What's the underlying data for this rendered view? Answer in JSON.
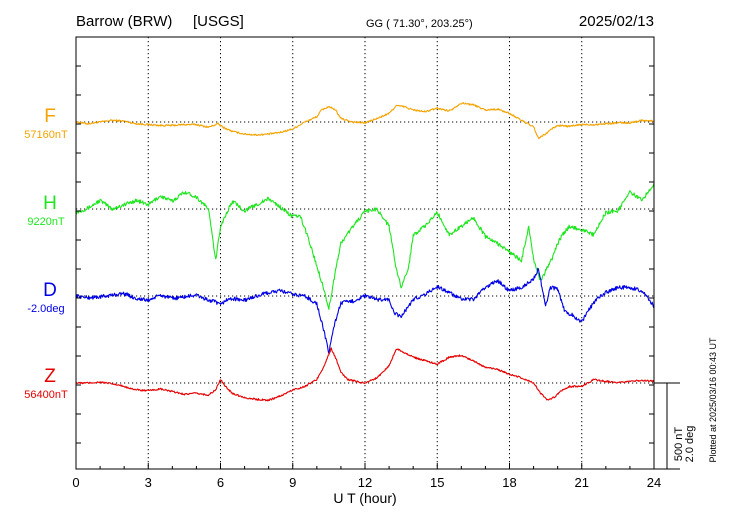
{
  "header": {
    "station": "Barrow (BRW)",
    "source": "[USGS]",
    "coords": "GG ( 71.30°, 203.25°)",
    "date": "2025/02/13"
  },
  "scale_bar": {
    "nt_label": "500 nT",
    "deg_label": "2.0 deg"
  },
  "footer_note": "Plotted at 2025/03/16 00:43 UT",
  "chart_data": {
    "type": "line",
    "xlabel": "U T (hour)",
    "xlim": [
      0,
      24
    ],
    "xticks": [
      "0",
      "3",
      "6",
      "9",
      "12",
      "15",
      "18",
      "21",
      "24"
    ],
    "scale": {
      "nT_per_division": 500,
      "deg_per_division": 2.0
    },
    "series": [
      {
        "name": "F",
        "baseline": "57160nT",
        "color": "#f5a300",
        "x": [
          0,
          0.5,
          1,
          1.5,
          2,
          2.5,
          3,
          3.5,
          4,
          4.5,
          5,
          5.5,
          5.9,
          6.1,
          6.5,
          7,
          7.5,
          8,
          8.5,
          9,
          9.5,
          10,
          10.2,
          10.5,
          10.8,
          11,
          11.5,
          12,
          12.5,
          13,
          13.3,
          13.6,
          14,
          14.5,
          15,
          15.5,
          16,
          16.5,
          17,
          17.5,
          18,
          18.5,
          19,
          19.2,
          19.5,
          19.7,
          20,
          20.5,
          21,
          21.5,
          22,
          22.5,
          23,
          23.5,
          24
        ],
        "y": [
          0,
          -10,
          0,
          10,
          5,
          -10,
          -15,
          -20,
          -20,
          -15,
          -15,
          -30,
          -10,
          -30,
          -55,
          -70,
          -75,
          -70,
          -60,
          -40,
          0,
          30,
          70,
          90,
          65,
          20,
          0,
          -5,
          20,
          50,
          95,
          90,
          70,
          60,
          80,
          65,
          110,
          100,
          70,
          75,
          50,
          10,
          -30,
          -95,
          -70,
          -45,
          -20,
          -25,
          -15,
          -15,
          -10,
          -5,
          -5,
          10,
          5
        ]
      },
      {
        "name": "H",
        "baseline": "9220nT",
        "color": "#1ee61e",
        "x": [
          0,
          0.5,
          1,
          1.5,
          2,
          2.5,
          3,
          3.5,
          4,
          4.5,
          5,
          5.5,
          5.8,
          6,
          6.2,
          6.5,
          7,
          7.5,
          8,
          8.5,
          9,
          9.3,
          9.6,
          10,
          10.2,
          10.5,
          10.8,
          11,
          11.5,
          12,
          12.5,
          13,
          13.3,
          13.5,
          13.8,
          14,
          14.5,
          15,
          15.5,
          16,
          16.5,
          17,
          17.5,
          18,
          18.5,
          18.8,
          19,
          19.3,
          19.6,
          19.8,
          20,
          20.2,
          20.5,
          21,
          21.5,
          22,
          22.5,
          23,
          23.5,
          24
        ],
        "y": [
          -20,
          5,
          50,
          0,
          25,
          50,
          25,
          75,
          45,
          100,
          70,
          0,
          -300,
          -100,
          -40,
          45,
          -10,
          25,
          60,
          10,
          -45,
          -40,
          -150,
          -330,
          -420,
          -580,
          -340,
          -200,
          -100,
          -15,
          0,
          -100,
          -350,
          -450,
          -350,
          -150,
          -100,
          -20,
          -150,
          -100,
          -50,
          -160,
          -200,
          -250,
          -300,
          -100,
          -300,
          -420,
          -330,
          -280,
          -200,
          -150,
          -100,
          -120,
          -150,
          -20,
          -10,
          100,
          50,
          150
        ]
      },
      {
        "name": "D",
        "baseline": "-2.0deg",
        "color": "#0000e6",
        "x": [
          0,
          0.5,
          1,
          1.5,
          2,
          2.5,
          3,
          3.5,
          4,
          4.5,
          5,
          5.5,
          5.8,
          6,
          6.2,
          6.5,
          7,
          7.5,
          8,
          8.5,
          9,
          9.5,
          10,
          10.2,
          10.5,
          10.7,
          11,
          11.5,
          12,
          12.5,
          13,
          13.2,
          13.5,
          13.8,
          14,
          14.5,
          15,
          15.5,
          16,
          16.5,
          17,
          17.5,
          18,
          18.5,
          19,
          19.2,
          19.5,
          19.7,
          20,
          20.3,
          20.6,
          21,
          21.3,
          21.6,
          22,
          22.5,
          23,
          23.5,
          24
        ],
        "y": [
          0,
          -10,
          -5,
          5,
          15,
          -15,
          -25,
          5,
          -15,
          -5,
          5,
          -25,
          -35,
          -55,
          -25,
          -15,
          -25,
          0,
          20,
          30,
          10,
          0,
          -45,
          -150,
          -330,
          -180,
          -40,
          -30,
          0,
          -20,
          -20,
          -100,
          -120,
          -60,
          -20,
          10,
          55,
          20,
          -20,
          -20,
          50,
          90,
          30,
          50,
          100,
          160,
          -60,
          50,
          40,
          -90,
          -110,
          -150,
          -80,
          -20,
          20,
          50,
          50,
          30,
          -60
        ]
      },
      {
        "name": "Z",
        "baseline": "56400nT",
        "color": "#e60000",
        "x": [
          0,
          0.5,
          1,
          1.5,
          2,
          2.5,
          3,
          3.5,
          4,
          4.5,
          5,
          5.5,
          5.8,
          6,
          6.2,
          6.5,
          7,
          7.5,
          8,
          8.5,
          9,
          9.5,
          10,
          10.3,
          10.6,
          10.8,
          11,
          11.3,
          11.6,
          12,
          12.5,
          13,
          13.3,
          13.6,
          14,
          14.5,
          15,
          15.5,
          16,
          16.5,
          17,
          17.5,
          18,
          18.5,
          19,
          19.3,
          19.6,
          19.9,
          20.2,
          20.5,
          21,
          21.5,
          22,
          22.5,
          23,
          23.5,
          24
        ],
        "y": [
          0,
          0,
          5,
          -5,
          -20,
          -40,
          -45,
          -35,
          -50,
          -65,
          -60,
          -70,
          -40,
          20,
          -20,
          -60,
          -85,
          -95,
          -100,
          -75,
          -40,
          -20,
          20,
          100,
          200,
          140,
          60,
          20,
          10,
          0,
          30,
          100,
          200,
          180,
          150,
          130,
          110,
          150,
          160,
          130,
          90,
          80,
          50,
          30,
          0,
          -60,
          -100,
          -80,
          -40,
          -20,
          -20,
          20,
          10,
          0,
          10,
          15,
          10
        ]
      }
    ]
  }
}
